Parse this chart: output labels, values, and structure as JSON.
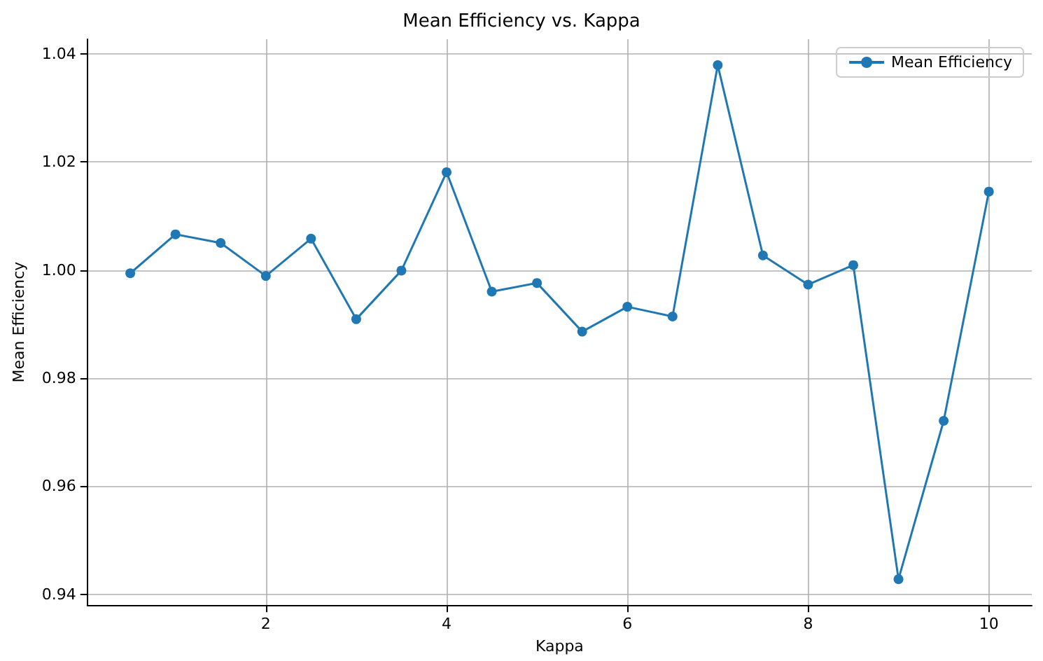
{
  "chart_data": {
    "type": "line",
    "title": "Mean Efficiency vs. Kappa",
    "xlabel": "Kappa",
    "ylabel": "Mean Efficiency",
    "x": [
      0.5,
      1,
      1.5,
      2,
      2.5,
      3,
      3.5,
      4,
      4.5,
      5,
      5.5,
      6,
      6.5,
      7,
      7.5,
      8,
      8.5,
      9,
      9.5,
      10
    ],
    "series": [
      {
        "name": "Mean Efficiency",
        "color": "#1f77b4",
        "values": [
          0.9994,
          1.0066,
          1.005,
          0.9989,
          1.0058,
          0.9909,
          0.9999,
          1.0181,
          0.996,
          0.9976,
          0.9886,
          0.9932,
          0.9914,
          1.0379,
          1.0027,
          0.9973,
          1.0009,
          0.9428,
          0.9721,
          1.0145
        ]
      }
    ],
    "xlim": [
      0.025,
      10.475
    ],
    "xticks": [
      2,
      4,
      6,
      8,
      10
    ],
    "ylim": [
      0.938,
      1.0427
    ],
    "yticks": [
      {
        "value": 0.94,
        "label": "0.94"
      },
      {
        "value": 0.96,
        "label": "0.96"
      },
      {
        "value": 0.98,
        "label": "0.98"
      },
      {
        "value": 1.0,
        "label": "1.00"
      },
      {
        "value": 1.02,
        "label": "1.02"
      },
      {
        "value": 1.04,
        "label": "1.04"
      }
    ],
    "grid": true,
    "legend": "top right",
    "marker": "circle",
    "line_style": "solid"
  }
}
